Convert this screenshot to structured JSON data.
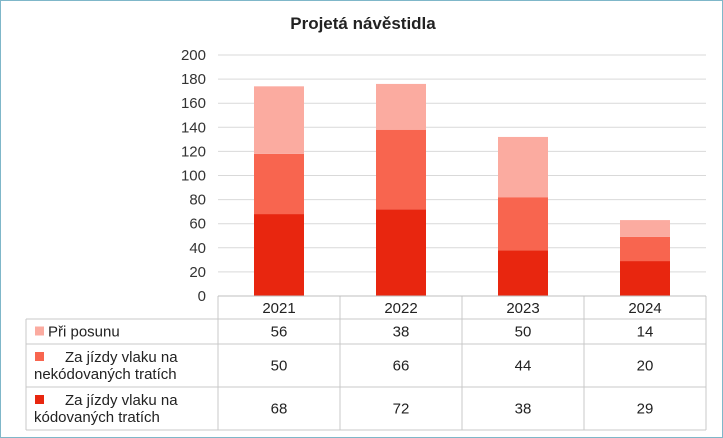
{
  "chart_data": {
    "type": "bar",
    "stacked": true,
    "title": "Projetá návěstidla",
    "categories": [
      "2021",
      "2022",
      "2023",
      "2024"
    ],
    "ylim": [
      0,
      200
    ],
    "yticks": [
      "0",
      "20",
      "40",
      "60",
      "80",
      "100",
      "120",
      "140",
      "160",
      "180",
      "200"
    ],
    "grid": true,
    "legend": "data-table-below",
    "series": [
      {
        "name": "Za jízdy vlaku na kódovaných tratích",
        "name_lines": [
          "Za jízdy vlaku na",
          "kódovaných tratích"
        ],
        "values": [
          68,
          72,
          38,
          29
        ],
        "color": "#e8260f"
      },
      {
        "name": "Za jízdy vlaku na nekódovaných tratích",
        "name_lines": [
          "Za jízdy vlaku na",
          "nekódovaných tratích"
        ],
        "values": [
          50,
          66,
          44,
          20
        ],
        "color": "#f8654f"
      },
      {
        "name": "Při posunu",
        "name_lines": [
          "Při posunu"
        ],
        "values": [
          56,
          38,
          50,
          14
        ],
        "color": "#fbaba0"
      }
    ]
  }
}
